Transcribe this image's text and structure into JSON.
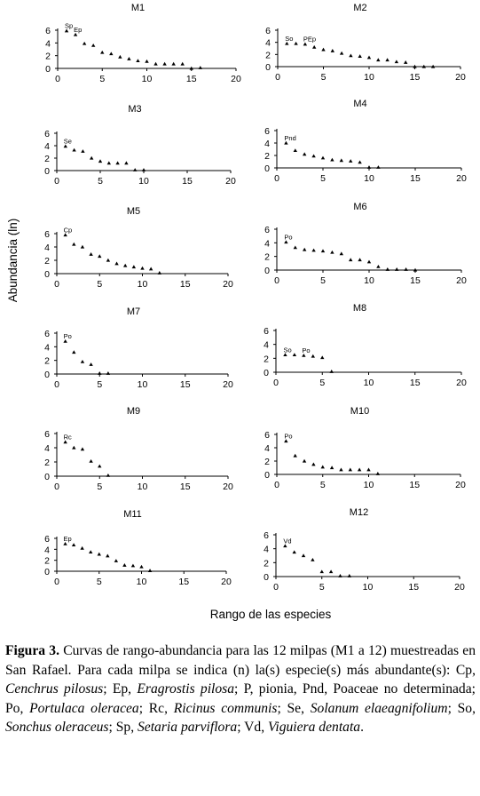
{
  "figure": {
    "y_axis_label": "Abundancia (ln)",
    "x_axis_label": "Rango de las especies"
  },
  "chart_data": [
    {
      "type": "scatter",
      "title": "M1",
      "xlim": [
        0,
        20
      ],
      "ylim": [
        0,
        6
      ],
      "xticks": [
        0,
        5,
        10,
        15,
        20
      ],
      "yticks": [
        0,
        2,
        4,
        6
      ],
      "points": [
        [
          1,
          5.9
        ],
        [
          2,
          5.3
        ],
        [
          3,
          3.9
        ],
        [
          4,
          3.6
        ],
        [
          5,
          2.5
        ],
        [
          6,
          2.3
        ],
        [
          7,
          1.8
        ],
        [
          8,
          1.5
        ],
        [
          9,
          1.2
        ],
        [
          10,
          1.1
        ],
        [
          11,
          0.7
        ],
        [
          12,
          0.7
        ],
        [
          13,
          0.7
        ],
        [
          14,
          0.7
        ],
        [
          15,
          0
        ],
        [
          16,
          0.1
        ]
      ],
      "annotations": [
        {
          "text": "Sp",
          "x": 1,
          "y": 5.9
        },
        {
          "text": "Ep",
          "x": 2,
          "y": 5.3
        }
      ]
    },
    {
      "type": "scatter",
      "title": "M2",
      "xlim": [
        0,
        20
      ],
      "ylim": [
        0,
        6
      ],
      "xticks": [
        0,
        5,
        10,
        15,
        20
      ],
      "yticks": [
        0,
        2,
        4,
        6
      ],
      "points": [
        [
          1,
          3.8
        ],
        [
          2,
          3.8
        ],
        [
          3,
          3.7
        ],
        [
          4,
          3.2
        ],
        [
          5,
          2.8
        ],
        [
          6,
          2.6
        ],
        [
          7,
          2.2
        ],
        [
          8,
          1.8
        ],
        [
          9,
          1.7
        ],
        [
          10,
          1.5
        ],
        [
          11,
          1.1
        ],
        [
          12,
          1.1
        ],
        [
          13,
          0.8
        ],
        [
          14,
          0.7
        ],
        [
          15,
          0
        ],
        [
          16,
          0
        ],
        [
          17,
          0
        ]
      ],
      "annotations": [
        {
          "text": "So",
          "x": 1,
          "y": 3.8
        },
        {
          "text": "PEp",
          "x": 3,
          "y": 3.7
        }
      ]
    },
    {
      "type": "scatter",
      "title": "M3",
      "xlim": [
        0,
        20
      ],
      "ylim": [
        0,
        6
      ],
      "xticks": [
        0,
        5,
        10,
        15,
        20
      ],
      "yticks": [
        0,
        2,
        4,
        6
      ],
      "points": [
        [
          1,
          3.9
        ],
        [
          2,
          3.3
        ],
        [
          3,
          3.1
        ],
        [
          4,
          2.0
        ],
        [
          5,
          1.5
        ],
        [
          6,
          1.2
        ],
        [
          7,
          1.2
        ],
        [
          8,
          1.2
        ],
        [
          9,
          0.1
        ],
        [
          10,
          0.1
        ]
      ],
      "annotations": [
        {
          "text": "Se",
          "x": 1,
          "y": 3.9
        }
      ]
    },
    {
      "type": "scatter",
      "title": "M4",
      "xlim": [
        0,
        20
      ],
      "ylim": [
        0,
        6
      ],
      "xticks": [
        0,
        5,
        10,
        15,
        20
      ],
      "yticks": [
        0,
        2,
        4,
        6
      ],
      "points": [
        [
          1,
          4.0
        ],
        [
          2,
          2.8
        ],
        [
          3,
          2.2
        ],
        [
          4,
          1.9
        ],
        [
          5,
          1.6
        ],
        [
          6,
          1.3
        ],
        [
          7,
          1.2
        ],
        [
          8,
          1.1
        ],
        [
          9,
          0.9
        ],
        [
          10,
          0.1
        ],
        [
          11,
          0.1
        ]
      ],
      "annotations": [
        {
          "text": "Pnd",
          "x": 1,
          "y": 4.0
        }
      ]
    },
    {
      "type": "scatter",
      "title": "M5",
      "xlim": [
        0,
        20
      ],
      "ylim": [
        0,
        6
      ],
      "xticks": [
        0,
        5,
        10,
        15,
        20
      ],
      "yticks": [
        0,
        2,
        4,
        6
      ],
      "points": [
        [
          1,
          5.8
        ],
        [
          2,
          4.4
        ],
        [
          3,
          4.0
        ],
        [
          4,
          2.9
        ],
        [
          5,
          2.6
        ],
        [
          6,
          2.0
        ],
        [
          7,
          1.5
        ],
        [
          8,
          1.2
        ],
        [
          9,
          1.0
        ],
        [
          10,
          0.8
        ],
        [
          11,
          0.7
        ],
        [
          12,
          0.1
        ]
      ],
      "annotations": [
        {
          "text": "Cp",
          "x": 1,
          "y": 5.8
        }
      ]
    },
    {
      "type": "scatter",
      "title": "M6",
      "xlim": [
        0,
        20
      ],
      "ylim": [
        0,
        6
      ],
      "xticks": [
        0,
        5,
        10,
        15,
        20
      ],
      "yticks": [
        0,
        2,
        4,
        6
      ],
      "points": [
        [
          1,
          4.1
        ],
        [
          2,
          3.3
        ],
        [
          3,
          3.0
        ],
        [
          4,
          2.9
        ],
        [
          5,
          2.8
        ],
        [
          6,
          2.6
        ],
        [
          7,
          2.4
        ],
        [
          8,
          1.5
        ],
        [
          9,
          1.5
        ],
        [
          10,
          1.2
        ],
        [
          11,
          0.5
        ],
        [
          12,
          0.1
        ],
        [
          13,
          0.1
        ],
        [
          14,
          0.1
        ],
        [
          15,
          0
        ]
      ],
      "annotations": [
        {
          "text": "Po",
          "x": 1,
          "y": 4.1
        }
      ]
    },
    {
      "type": "scatter",
      "title": "M7",
      "xlim": [
        0,
        20
      ],
      "ylim": [
        0,
        6
      ],
      "xticks": [
        0,
        5,
        10,
        15,
        20
      ],
      "yticks": [
        0,
        2,
        4,
        6
      ],
      "points": [
        [
          1,
          4.8
        ],
        [
          2,
          3.2
        ],
        [
          3,
          1.8
        ],
        [
          4,
          1.4
        ],
        [
          5,
          0.1
        ],
        [
          6,
          0.1
        ]
      ],
      "annotations": [
        {
          "text": "Po",
          "x": 1,
          "y": 4.8
        }
      ]
    },
    {
      "type": "scatter",
      "title": "M8",
      "xlim": [
        0,
        20
      ],
      "ylim": [
        0,
        6
      ],
      "xticks": [
        0,
        5,
        10,
        15,
        20
      ],
      "yticks": [
        0,
        2,
        4,
        6
      ],
      "points": [
        [
          1,
          2.5
        ],
        [
          2,
          2.5
        ],
        [
          3,
          2.4
        ],
        [
          4,
          2.3
        ],
        [
          5,
          2.1
        ],
        [
          6,
          0.1
        ]
      ],
      "annotations": [
        {
          "text": "So",
          "x": 1,
          "y": 2.5
        },
        {
          "text": "Po",
          "x": 3,
          "y": 2.4
        }
      ]
    },
    {
      "type": "scatter",
      "title": "M9",
      "xlim": [
        0,
        20
      ],
      "ylim": [
        0,
        6
      ],
      "xticks": [
        0,
        5,
        10,
        15,
        20
      ],
      "yticks": [
        0,
        2,
        4,
        6
      ],
      "points": [
        [
          1,
          4.8
        ],
        [
          2,
          4.0
        ],
        [
          3,
          3.8
        ],
        [
          4,
          2.1
        ],
        [
          5,
          1.4
        ],
        [
          6,
          0.1
        ]
      ],
      "annotations": [
        {
          "text": "Rc",
          "x": 1,
          "y": 4.8
        }
      ]
    },
    {
      "type": "scatter",
      "title": "M10",
      "xlim": [
        0,
        20
      ],
      "ylim": [
        0,
        6
      ],
      "xticks": [
        0,
        5,
        10,
        15,
        20
      ],
      "yticks": [
        0,
        2,
        4,
        6
      ],
      "points": [
        [
          1,
          5.0
        ],
        [
          2,
          2.8
        ],
        [
          3,
          2.0
        ],
        [
          4,
          1.5
        ],
        [
          5,
          1.1
        ],
        [
          6,
          1.0
        ],
        [
          7,
          0.7
        ],
        [
          8,
          0.7
        ],
        [
          9,
          0.7
        ],
        [
          10,
          0.7
        ],
        [
          11,
          0.1
        ]
      ],
      "annotations": [
        {
          "text": "Po",
          "x": 1,
          "y": 5.0
        }
      ]
    },
    {
      "type": "scatter",
      "title": "M11",
      "xlim": [
        0,
        20
      ],
      "ylim": [
        0,
        6
      ],
      "xticks": [
        0,
        5,
        10,
        15,
        20
      ],
      "yticks": [
        0,
        2,
        4,
        6
      ],
      "points": [
        [
          1,
          5.0
        ],
        [
          2,
          4.8
        ],
        [
          3,
          4.2
        ],
        [
          4,
          3.5
        ],
        [
          5,
          3.1
        ],
        [
          6,
          2.8
        ],
        [
          7,
          1.9
        ],
        [
          8,
          1.1
        ],
        [
          9,
          1.0
        ],
        [
          10,
          0.8
        ],
        [
          11,
          0.1
        ]
      ],
      "annotations": [
        {
          "text": "Ep",
          "x": 1,
          "y": 5.0
        }
      ]
    },
    {
      "type": "scatter",
      "title": "M12",
      "xlim": [
        0,
        20
      ],
      "ylim": [
        0,
        6
      ],
      "xticks": [
        0,
        5,
        10,
        15,
        20
      ],
      "yticks": [
        0,
        2,
        4,
        6
      ],
      "points": [
        [
          1,
          4.4
        ],
        [
          2,
          3.5
        ],
        [
          3,
          3.0
        ],
        [
          4,
          2.4
        ],
        [
          5,
          0.7
        ],
        [
          6,
          0.7
        ],
        [
          7,
          0.1
        ],
        [
          8,
          0.1
        ]
      ],
      "annotations": [
        {
          "text": "Vd",
          "x": 1,
          "y": 4.4
        }
      ]
    }
  ],
  "caption": {
    "label": "Figura 3.",
    "segments": [
      {
        "t": " Curvas de rango-abundancia para las 12 milpas (M1 a 12) muestreadas en San Rafael. Para cada milpa se indica (n) la(s) especie(s) más abundante(s): Cp, ",
        "i": false
      },
      {
        "t": "Cenchrus pilosus",
        "i": true
      },
      {
        "t": "; Ep, ",
        "i": false
      },
      {
        "t": "Eragrostis pilosa",
        "i": true
      },
      {
        "t": "; P, pionia, Pnd, Poaceae no determinada; Po, ",
        "i": false
      },
      {
        "t": "Portulaca oleracea",
        "i": true
      },
      {
        "t": "; Rc, ",
        "i": false
      },
      {
        "t": "Ricinus communis",
        "i": true
      },
      {
        "t": "; Se, ",
        "i": false
      },
      {
        "t": "Solanum elaeag­nifolium",
        "i": true
      },
      {
        "t": "; So, ",
        "i": false
      },
      {
        "t": "Sonchus oleraceus",
        "i": true
      },
      {
        "t": "; Sp, ",
        "i": false
      },
      {
        "t": "Setaria parviflora",
        "i": true
      },
      {
        "t": "; Vd, ",
        "i": false
      },
      {
        "t": "Viguiera dentata",
        "i": true
      },
      {
        "t": ".",
        "i": false
      }
    ]
  }
}
